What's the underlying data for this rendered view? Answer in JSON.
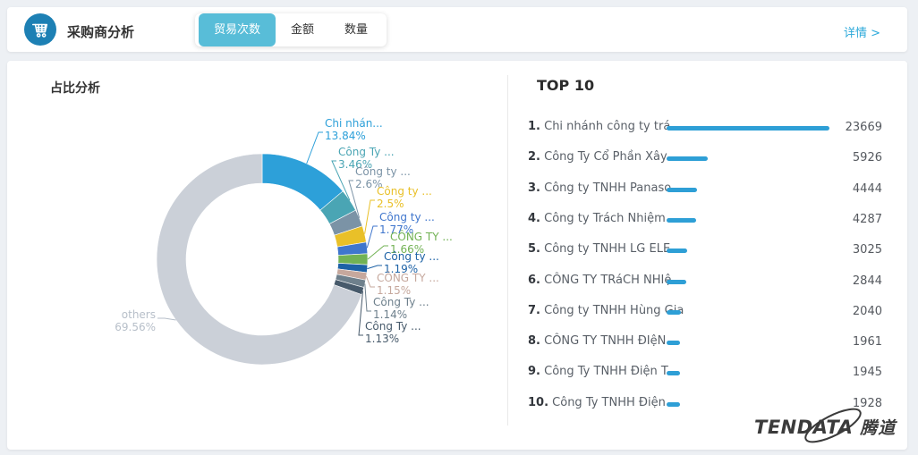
{
  "header": {
    "title": "采购商分析",
    "tabs": [
      {
        "label": "贸易次数",
        "active": true
      },
      {
        "label": "金额",
        "active": false
      },
      {
        "label": "数量",
        "active": false
      }
    ],
    "detail_link": "详情 >"
  },
  "left_panel": {
    "title": "占比分析"
  },
  "chart_data": [
    {
      "type": "pie",
      "title": "占比分析",
      "donut": true,
      "legend_position": "none",
      "slices": [
        {
          "label": "Chi nhán...",
          "pct": 13.84,
          "pct_label": "13.84%",
          "color": "#2da0d9"
        },
        {
          "label": "Công Ty ...",
          "pct": 3.46,
          "pct_label": "3.46%",
          "color": "#4aa5b4"
        },
        {
          "label": "Công ty ...",
          "pct": 2.6,
          "pct_label": "2.6%",
          "color": "#7b93a6"
        },
        {
          "label": "Công ty ...",
          "pct": 2.5,
          "pct_label": "2.5%",
          "color": "#e9c028"
        },
        {
          "label": "Công ty ...",
          "pct": 1.77,
          "pct_label": "1.77%",
          "color": "#3f76cd"
        },
        {
          "label": "CÔNG TY ...",
          "pct": 1.66,
          "pct_label": "1.66%",
          "color": "#72b254"
        },
        {
          "label": "Công ty ...",
          "pct": 1.19,
          "pct_label": "1.19%",
          "color": "#1d62a6"
        },
        {
          "label": "CÔNG TY ...",
          "pct": 1.15,
          "pct_label": "1.15%",
          "color": "#c6a89d"
        },
        {
          "label": "Công Ty ...",
          "pct": 1.14,
          "pct_label": "1.14%",
          "color": "#6e808c"
        },
        {
          "label": "Công Ty ...",
          "pct": 1.13,
          "pct_label": "1.13%",
          "color": "#475a6b"
        },
        {
          "label": "others",
          "pct": 69.56,
          "pct_label": "69.56%",
          "color": "#cbd0d8",
          "label_color": "#b7bfc9"
        }
      ]
    },
    {
      "type": "bar",
      "title": "TOP 10",
      "orientation": "horizontal",
      "bar_color": "#2e9fd6",
      "max_value": 23669,
      "categories": [
        "Chi nhánh công ty trá...",
        "Công Ty Cổ Phần Xây ...",
        "Công ty TNHH Panaso...",
        "Công ty Trách Nhiệm ...",
        "Công ty TNHH LG ELE...",
        "CÔNG TY TRáCH NHIệ...",
        "Công ty TNHH Hùng Gia",
        "CÔNG TY TNHH ĐIệN ...",
        "Công Ty TNHH Điện T...",
        "Công Ty TNHH Điện ..."
      ],
      "values": [
        23669,
        5926,
        4444,
        4287,
        3025,
        2844,
        2040,
        1961,
        1945,
        1928
      ]
    }
  ],
  "top10": {
    "title": "TOP 10"
  },
  "watermark": {
    "brand": "TENDATA",
    "cn": "腾道"
  },
  "colors": {
    "accent_blue": "#2e9fd6",
    "tab_active": "#58bdd8",
    "icon_circle": "#1d80b4",
    "link": "#2ca9da"
  }
}
